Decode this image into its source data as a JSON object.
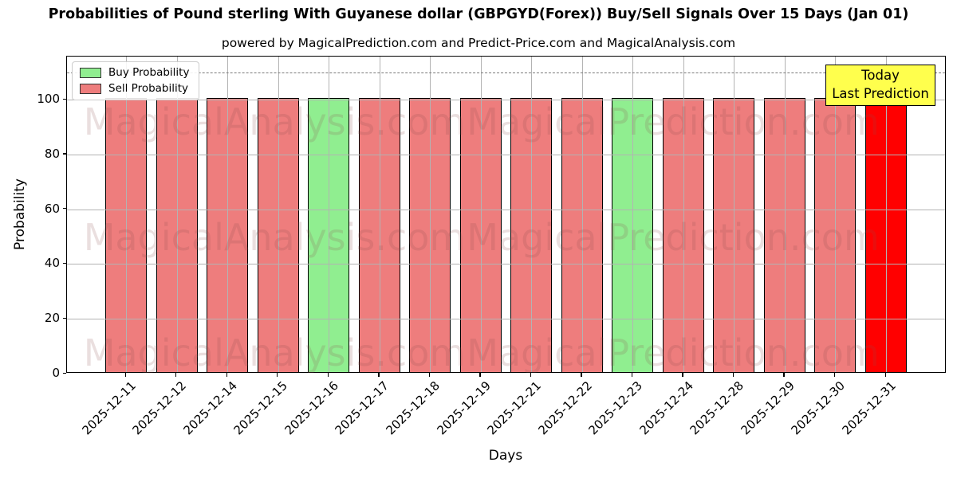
{
  "header": {
    "title": "Probabilities of Pound sterling With Guyanese dollar (GBPGYD(Forex)) Buy/Sell Signals Over 15 Days (Jan 01)",
    "subtitle": "powered by MagicalPrediction.com and Predict-Price.com and MagicalAnalysis.com"
  },
  "legend": {
    "items": [
      {
        "label": "Buy Probability",
        "color": "#90ee90"
      },
      {
        "label": "Sell Probability",
        "color": "#ee7d7d"
      }
    ]
  },
  "annotation_box": {
    "line1": "Today",
    "line2": "Last Prediction",
    "bg_color": "#ffff4d",
    "border_color": "#000000"
  },
  "watermarks": {
    "left_text": "MagicalAnalysis.com",
    "right_text": "MagicalPrediction.com"
  },
  "axes": {
    "xlabel": "Days",
    "ylabel": "Probability",
    "yticks": [
      0,
      20,
      40,
      60,
      80,
      100
    ]
  },
  "chart_data": {
    "type": "bar",
    "stacked": true,
    "title": "Probabilities of Pound sterling With Guyanese dollar (GBPGYD(Forex)) Buy/Sell Signals Over 15 Days (Jan 01)",
    "xlabel": "Days",
    "ylabel": "Probability",
    "ylim": [
      0,
      115.7
    ],
    "grid": true,
    "legend_position": "upper left",
    "dashed_line_y": 110,
    "categories": [
      "2025-12-11",
      "2025-12-12",
      "2025-12-14",
      "2025-12-15",
      "2025-12-16",
      "2025-12-17",
      "2025-12-18",
      "2025-12-19",
      "2025-12-21",
      "2025-12-22",
      "2025-12-23",
      "2025-12-24",
      "2025-12-28",
      "2025-12-29",
      "2025-12-30",
      "2025-12-31"
    ],
    "series": [
      {
        "name": "Buy Probability",
        "color": "#90ee90",
        "values": [
          0,
          0,
          0,
          0,
          100,
          0,
          0,
          0,
          0,
          0,
          100,
          0,
          0,
          0,
          0,
          0
        ]
      },
      {
        "name": "Sell Probability",
        "color": "#ee7d7d",
        "values": [
          100,
          100,
          100,
          100,
          0,
          100,
          100,
          100,
          100,
          100,
          0,
          100,
          100,
          100,
          100,
          100
        ]
      }
    ],
    "highlight": {
      "category": "2025-12-31",
      "color": "#ff0000",
      "note": "Today Last Prediction"
    }
  }
}
